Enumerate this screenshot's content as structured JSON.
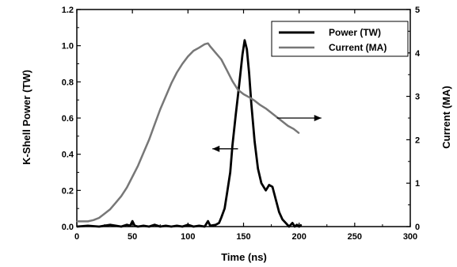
{
  "chart_data": {
    "type": "line",
    "xlabel": "Time (ns)",
    "ylabel_left": "K-Shell Power (TW)",
    "ylabel_right": "Current (MA)",
    "xlim": [
      0,
      300
    ],
    "ylim_left": [
      0,
      1.2
    ],
    "ylim_right": [
      0,
      5
    ],
    "xticks": [
      0,
      50,
      100,
      150,
      200,
      250,
      300
    ],
    "yticks_left": [
      0.0,
      0.2,
      0.4,
      0.6,
      0.8,
      1.0,
      1.2
    ],
    "yticks_left_labels": [
      "0.0",
      "0.2",
      "0.4",
      "0.6",
      "0.8",
      "1.0",
      "1.2"
    ],
    "yticks_right": [
      0,
      1,
      2,
      3,
      4,
      5
    ],
    "grid": false,
    "legend_position": "top-right",
    "series": [
      {
        "name": "Power (TW)",
        "axis": "left",
        "style": "thick-black",
        "x": [
          0,
          10,
          20,
          30,
          40,
          45,
          48,
          50,
          52,
          55,
          60,
          65,
          70,
          75,
          80,
          85,
          90,
          95,
          100,
          105,
          110,
          115,
          118,
          120,
          125,
          128,
          130,
          133,
          135,
          138,
          140,
          143,
          146,
          149,
          151,
          153,
          155,
          157,
          160,
          163,
          166,
          170,
          173,
          176,
          179,
          182,
          185,
          188,
          191,
          194,
          196,
          198,
          200,
          202
        ],
        "y": [
          0.0,
          0.005,
          0.0,
          0.01,
          0.0,
          0.01,
          0.005,
          0.03,
          0.005,
          0.0,
          0.005,
          0.0,
          0.01,
          0.0,
          0.005,
          0.0,
          0.005,
          0.0,
          0.01,
          0.0,
          0.005,
          0.0,
          0.03,
          0.005,
          0.01,
          0.02,
          0.05,
          0.1,
          0.18,
          0.3,
          0.45,
          0.62,
          0.78,
          0.95,
          1.03,
          0.98,
          0.85,
          0.68,
          0.47,
          0.32,
          0.24,
          0.2,
          0.23,
          0.22,
          0.15,
          0.08,
          0.04,
          0.02,
          0.0,
          0.02,
          0.0,
          0.01,
          0.0,
          0.01
        ]
      },
      {
        "name": "Current (MA)",
        "axis": "right",
        "style": "gray",
        "x": [
          0,
          10,
          15,
          20,
          25,
          30,
          35,
          40,
          45,
          50,
          55,
          60,
          65,
          70,
          75,
          80,
          85,
          90,
          95,
          100,
          105,
          110,
          115,
          118,
          120,
          125,
          130,
          135,
          140,
          145,
          150,
          155,
          160,
          165,
          170,
          175,
          180,
          185,
          190,
          195,
          200
        ],
        "y": [
          0.12,
          0.12,
          0.15,
          0.2,
          0.3,
          0.4,
          0.55,
          0.7,
          0.9,
          1.15,
          1.4,
          1.7,
          2.0,
          2.35,
          2.7,
          3.0,
          3.3,
          3.55,
          3.75,
          3.92,
          4.05,
          4.12,
          4.2,
          4.22,
          4.15,
          4.0,
          3.85,
          3.6,
          3.35,
          3.15,
          3.05,
          2.98,
          2.9,
          2.8,
          2.72,
          2.62,
          2.52,
          2.42,
          2.32,
          2.25,
          2.15
        ]
      }
    ],
    "annotations": [
      {
        "type": "arrow",
        "direction": "left",
        "points_to": "left-axis",
        "from": {
          "x": 145,
          "y": 0.43
        },
        "to": {
          "x": 122,
          "y": 0.43
        }
      },
      {
        "type": "arrow",
        "direction": "right",
        "points_to": "right-axis",
        "from": {
          "x": 180,
          "y": 0.6
        },
        "to": {
          "x": 220,
          "y": 0.6
        }
      }
    ]
  }
}
